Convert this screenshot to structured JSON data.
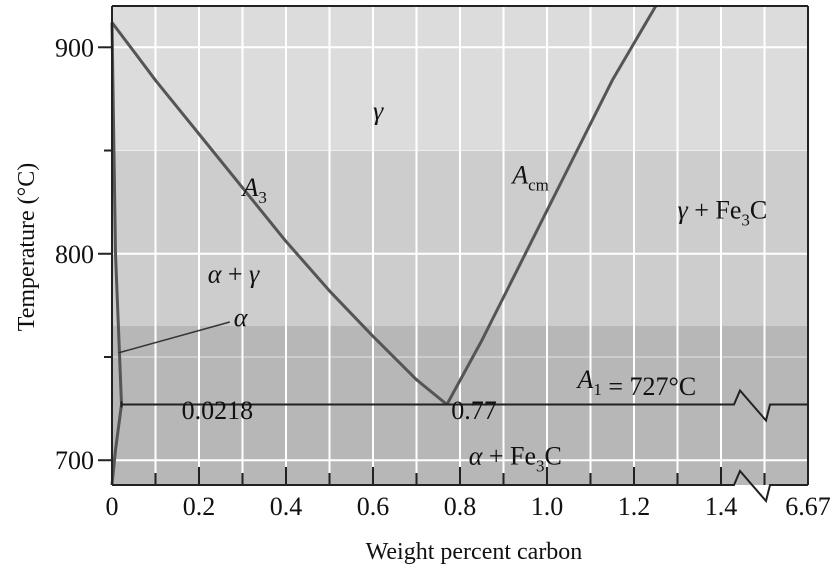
{
  "chart_data": {
    "type": "line",
    "title": "",
    "xlabel": "Weight percent carbon",
    "ylabel": "Temperature (°C)",
    "xlim": [
      0,
      1.6
    ],
    "ylim": [
      688,
      920
    ],
    "x_ticks": [
      "0",
      "0.2",
      "0.4",
      "0.6",
      "0.8",
      "1.0",
      "1.2",
      "1.4"
    ],
    "x_tick_values": [
      0,
      0.2,
      0.4,
      0.6,
      0.8,
      1.0,
      1.2,
      1.4
    ],
    "x_axis_break_end_label": "6.67",
    "y_ticks": [
      "700",
      "800",
      "900"
    ],
    "y_tick_values": [
      700,
      800,
      900
    ],
    "grid": true,
    "background_bands": [
      {
        "from": 850,
        "to": 920,
        "color": "#dcdcdc"
      },
      {
        "from": 765,
        "to": 850,
        "color": "#cdcdcd"
      },
      {
        "from": 688,
        "to": 765,
        "color": "#b7b7b7"
      }
    ],
    "line_color": "#555555",
    "series": [
      {
        "name": "A3",
        "x": [
          0,
          0.05,
          0.1,
          0.2,
          0.3,
          0.4,
          0.5,
          0.6,
          0.7,
          0.77
        ],
        "y": [
          912,
          898,
          884,
          858,
          832,
          806,
          782,
          760,
          739,
          727
        ]
      },
      {
        "name": "Acm",
        "x": [
          0.77,
          0.85,
          0.95,
          1.05,
          1.15,
          1.25
        ],
        "y": [
          727,
          758,
          800,
          842,
          884,
          920
        ]
      },
      {
        "name": "",
        "x": [
          0,
          0.008,
          0.0218
        ],
        "y": [
          912,
          800,
          727
        ]
      },
      {
        "name": "",
        "x": [
          0.0218,
          0.008,
          0
        ],
        "y": [
          727,
          705,
          688
        ]
      }
    ],
    "eutectoid": {
      "temperature": 727,
      "x_start": 0.0218
    },
    "annotations": [
      {
        "text": "γ",
        "x": 0.6,
        "y": 865
      },
      {
        "text": "A3",
        "x": 0.3,
        "y": 828
      },
      {
        "text": "Acm",
        "x": 0.92,
        "y": 834
      },
      {
        "text": "γ + Fe3C",
        "x": 1.3,
        "y": 817
      },
      {
        "text": "α + γ",
        "x": 0.22,
        "y": 786
      },
      {
        "text": "α",
        "x": 0.28,
        "y": 765
      },
      {
        "text": "A1 = 727°C",
        "x": 1.07,
        "y": 735
      },
      {
        "text": "0.0218",
        "x": 0.16,
        "y": 720
      },
      {
        "text": "0.77",
        "x": 0.78,
        "y": 720
      },
      {
        "text": "α + Fe3C",
        "x": 0.82,
        "y": 698
      }
    ]
  }
}
